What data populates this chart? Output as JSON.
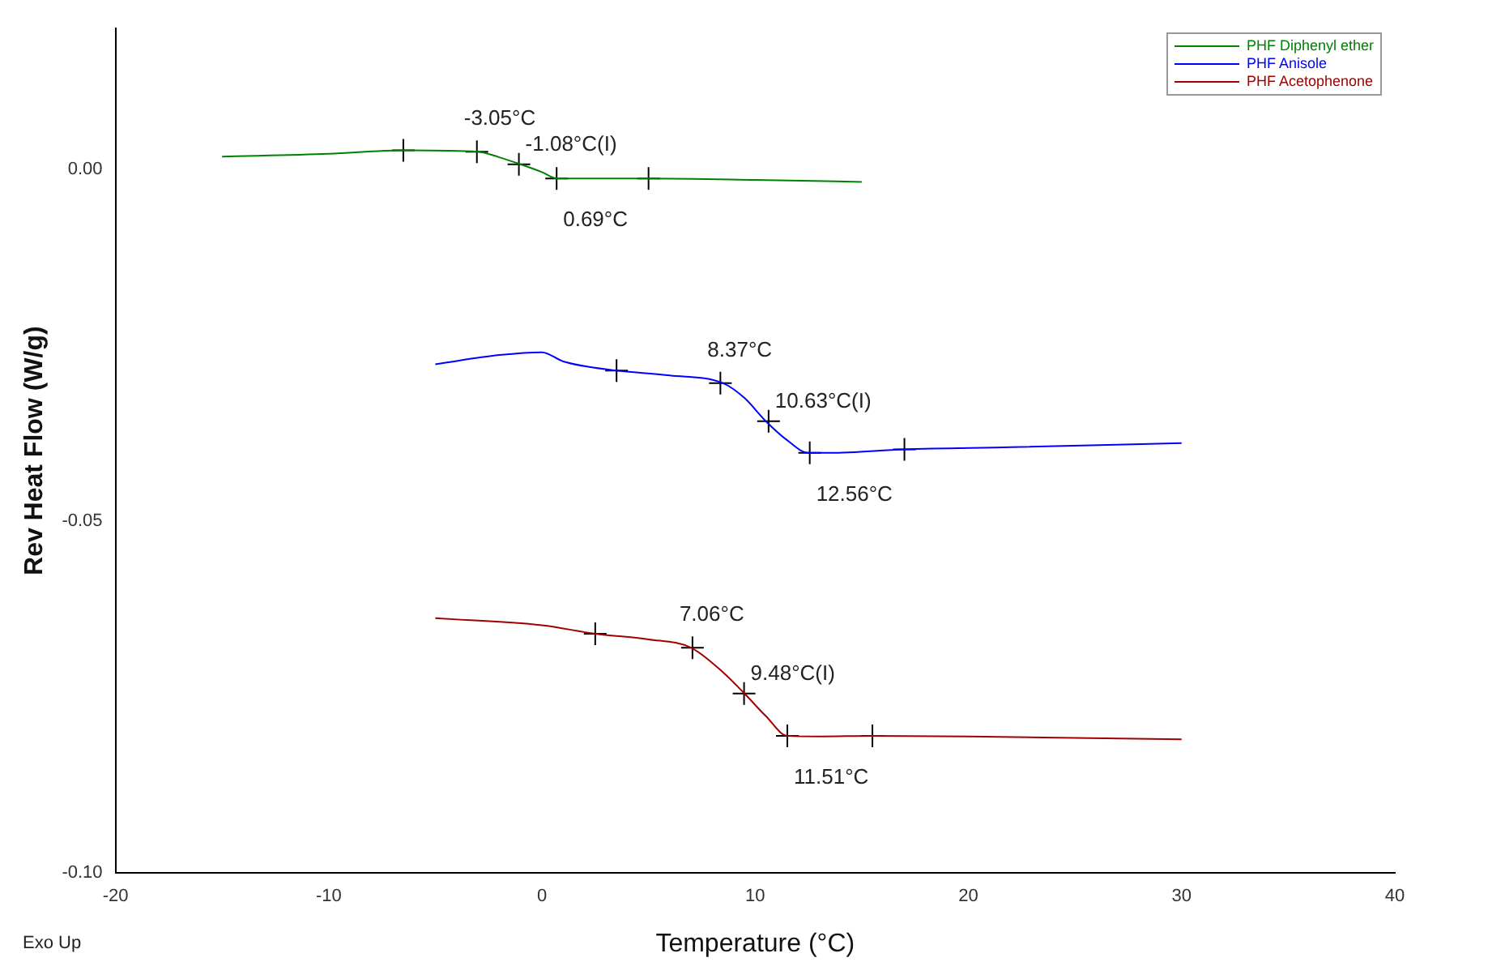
{
  "chart_data": {
    "type": "line",
    "xlabel": "Temperature (°C)",
    "ylabel": "Rev Heat Flow (W/g)",
    "xlim": [
      -20,
      40
    ],
    "xticks": [
      -20,
      -10,
      0,
      10,
      20,
      30,
      40
    ],
    "ylim": [
      -0.1,
      0.02
    ],
    "yticks": [
      {
        "value": -0.1,
        "label": "-0.10"
      },
      {
        "value": -0.05,
        "label": "-0.05"
      },
      {
        "value": 0,
        "label": "0.00"
      }
    ],
    "grid": false,
    "legend": "top right",
    "marker": "none",
    "line_style": "solid",
    "series": [
      {
        "name": "PHF Diphenyl ether",
        "color": "#008000",
        "x": [
          -15,
          -10,
          -6.5,
          -3,
          -2,
          -1,
          0,
          0.7,
          5,
          10,
          15
        ],
        "values": [
          0.0018,
          0.0022,
          0.0027,
          0.0025,
          0.0017,
          0.0007,
          -0.0004,
          -0.0013,
          -0.0013,
          -0.0015,
          -0.0018
        ]
      },
      {
        "name": "PHF Anisole",
        "color": "#0000ff",
        "x": [
          -5,
          -2,
          0,
          1,
          3.5,
          6,
          8.5,
          9.5,
          10.5,
          11.5,
          12.5,
          13.5,
          17,
          22,
          30
        ],
        "values": [
          -0.0277,
          -0.0264,
          -0.026,
          -0.0273,
          -0.0286,
          -0.0293,
          -0.0304,
          -0.0325,
          -0.0358,
          -0.0385,
          -0.0403,
          -0.0403,
          -0.0398,
          -0.0395,
          -0.0389
        ]
      },
      {
        "name": "PHF Acetophenone",
        "color": "#a00000",
        "x": [
          -5,
          0,
          2.5,
          5,
          7,
          8.5,
          9.5,
          10.5,
          11.5,
          13,
          15.5,
          20,
          30
        ],
        "values": [
          -0.0638,
          -0.0648,
          -0.066,
          -0.0668,
          -0.068,
          -0.0715,
          -0.0745,
          -0.0777,
          -0.0805,
          -0.0806,
          -0.0805,
          -0.0806,
          -0.081
        ]
      },
      {
        "type": "scatter",
        "color": "#000000",
        "marker": "cross",
        "x": [
          -6.5,
          -3.05,
          -1.08,
          0.69,
          5,
          3.5,
          8.37,
          10.63,
          12.56,
          17,
          2.5,
          7.06,
          9.48,
          11.51,
          15.5
        ],
        "values": [
          0.0027,
          0.0025,
          0.0007,
          -0.0013,
          -0.0013,
          -0.0286,
          -0.0304,
          -0.0358,
          -0.0403,
          -0.0398,
          -0.066,
          -0.068,
          -0.0745,
          -0.0805,
          -0.0805
        ]
      }
    ],
    "annotations": [
      {
        "text": "-3.05°C",
        "x": -3.05,
        "y": 0.0025
      },
      {
        "text": "-1.08°C(I)",
        "x": -1.08,
        "y": 0.0007
      },
      {
        "text": "0.69°C",
        "x": 0.69,
        "y": -0.0013
      },
      {
        "text": "8.37°C",
        "x": 8.37,
        "y": -0.0304
      },
      {
        "text": "10.63°C(I)",
        "x": 10.63,
        "y": -0.0358
      },
      {
        "text": "12.56°C",
        "x": 12.56,
        "y": -0.0403
      },
      {
        "text": "7.06°C",
        "x": 7.06,
        "y": -0.068
      },
      {
        "text": "9.48°C(I)",
        "x": 9.48,
        "y": -0.0745
      },
      {
        "text": "11.51°C",
        "x": 11.51,
        "y": -0.0805
      },
      "Exo Up"
    ]
  }
}
